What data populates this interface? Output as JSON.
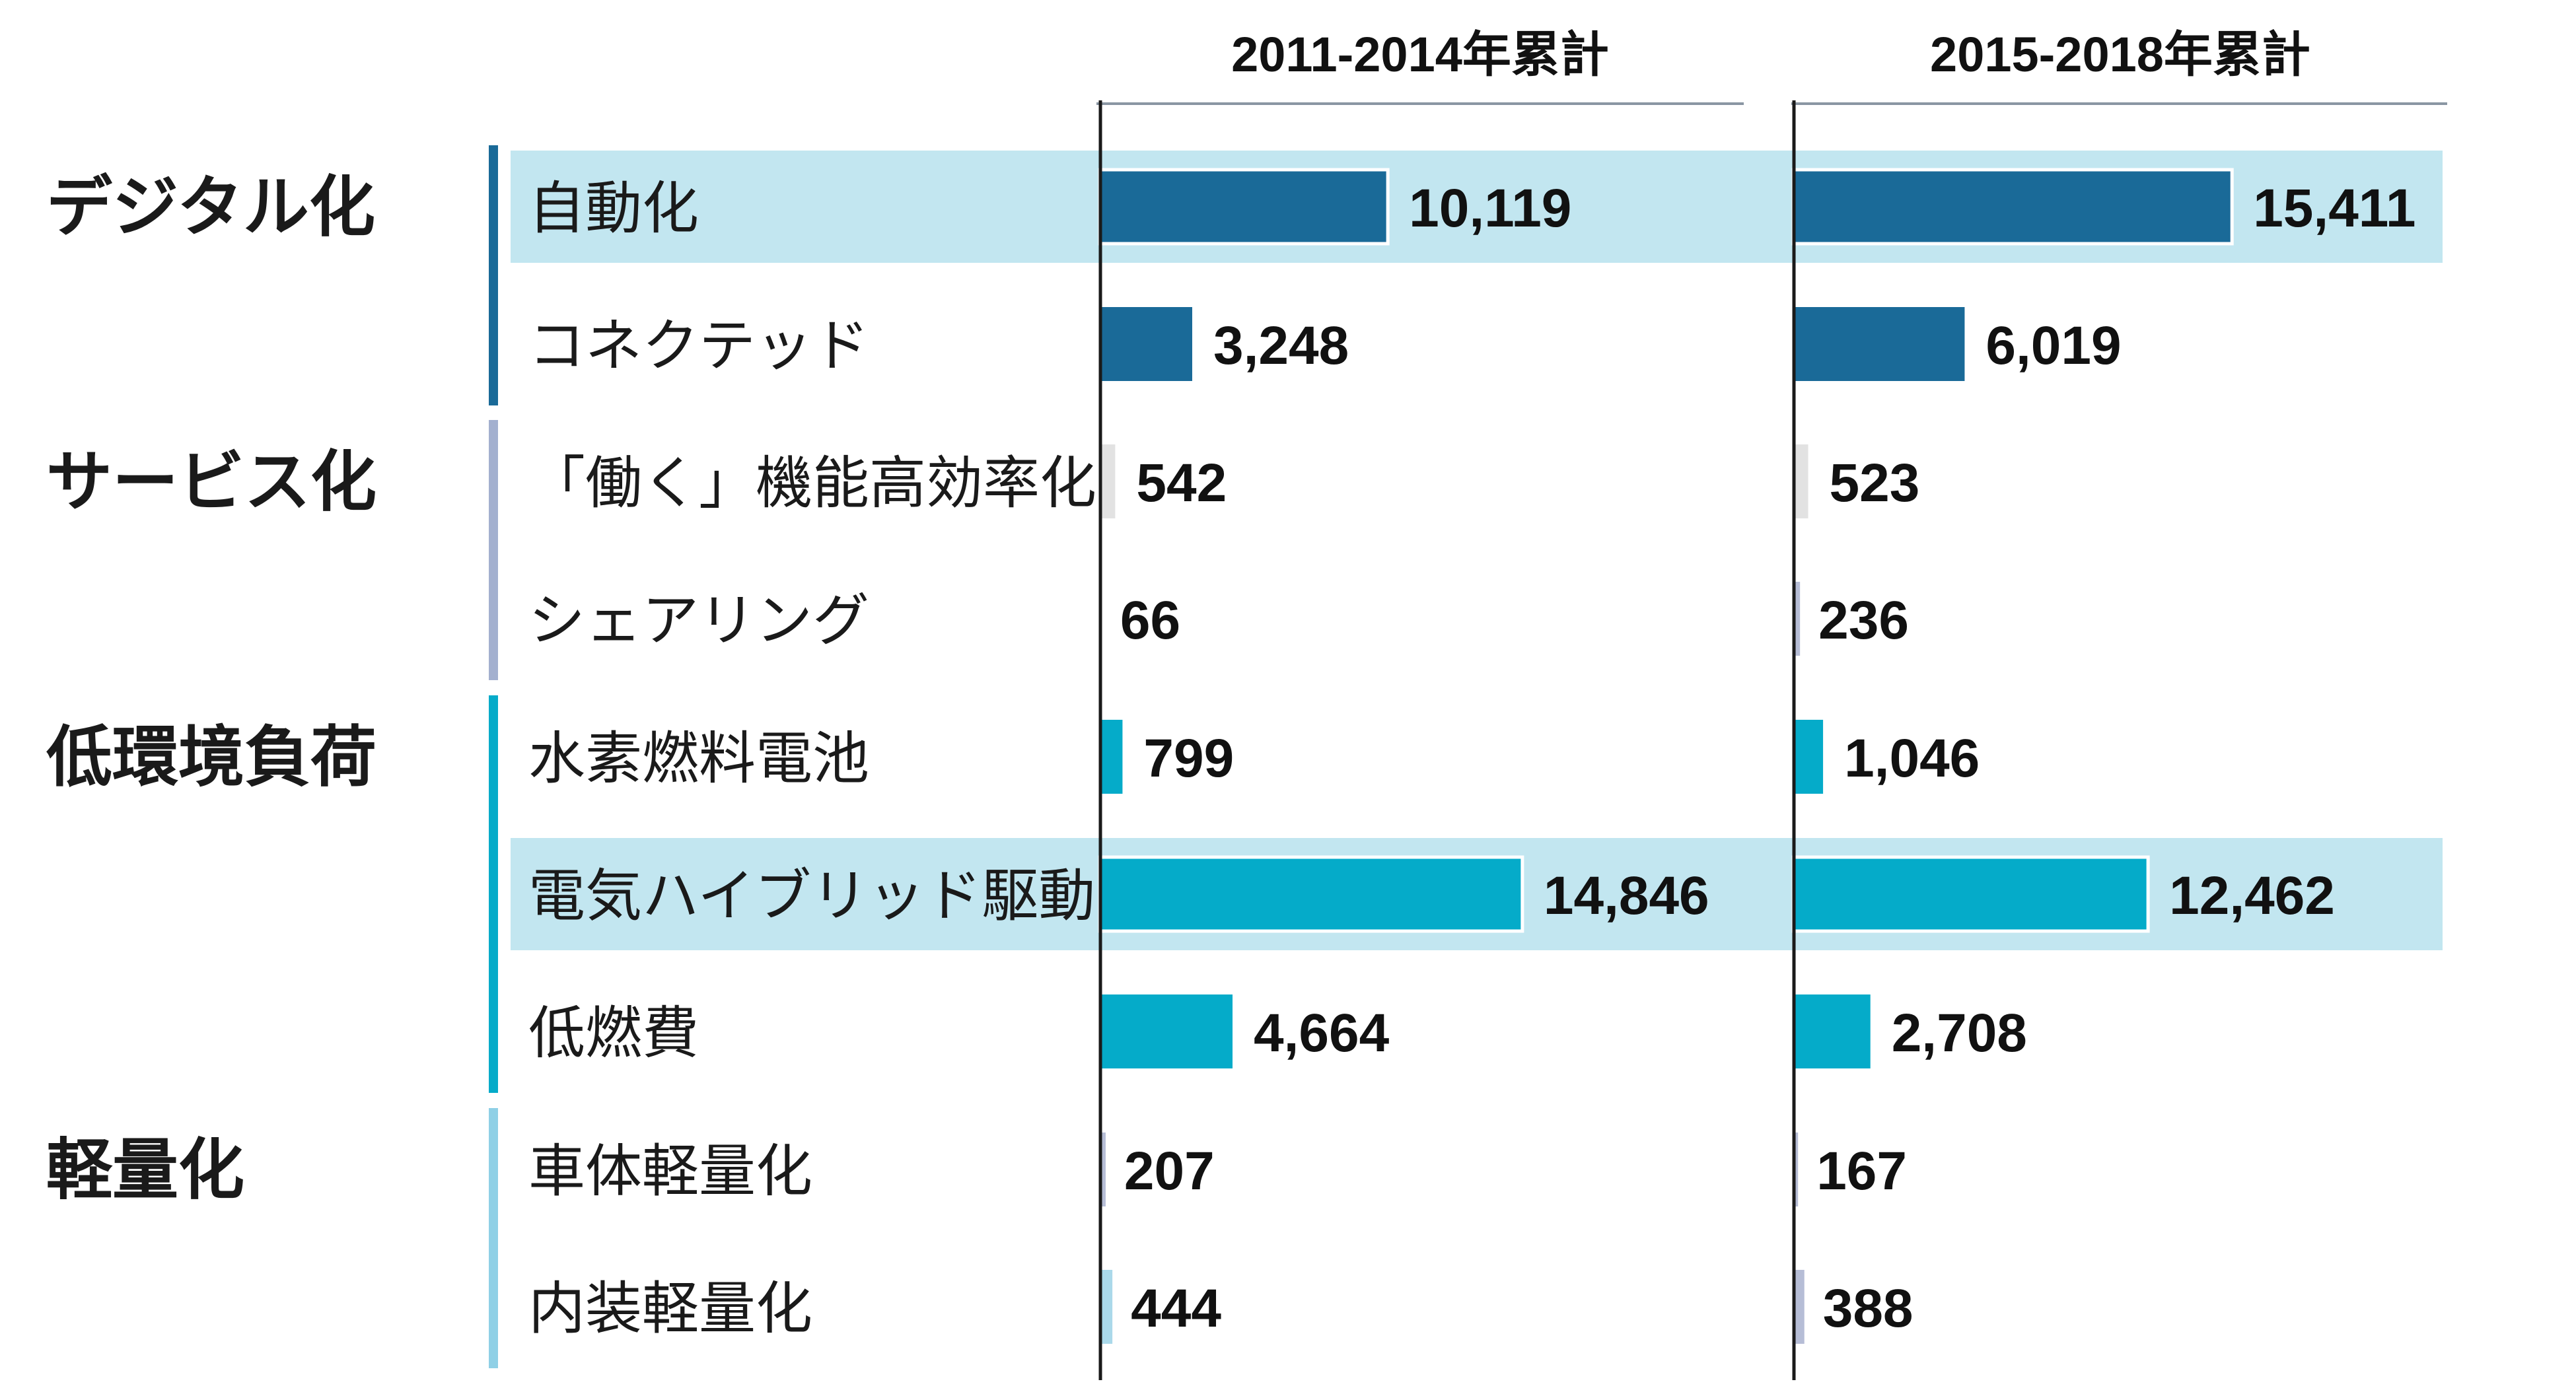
{
  "chart_data": {
    "type": "bar",
    "orientation": "horizontal",
    "panel_titles": [
      "2011-2014年累計",
      "2015-2018年累計"
    ],
    "groups": [
      {
        "name": "デジタル化",
        "color": "#1a6a98",
        "items": [
          0,
          1
        ]
      },
      {
        "name": "サービス化",
        "color": "#a3b0cf",
        "items": [
          2,
          3
        ]
      },
      {
        "name": "低環境負荷",
        "color": "#05abc9",
        "items": [
          4,
          5,
          6
        ]
      },
      {
        "name": "軽量化",
        "color": "#8fd0e6",
        "items": [
          7,
          8
        ]
      }
    ],
    "categories": [
      "自動化",
      "コネクテッド",
      "「働く」機能高効率化",
      "シェアリング",
      "水素燃料電池",
      "電気ハイブリッド駆動",
      "低燃費",
      "車体軽量化",
      "内装軽量化"
    ],
    "highlighted": [
      "自動化",
      "電気ハイブリッド駆動"
    ],
    "series": [
      {
        "name": "2011-2014年累計",
        "values": [
          10119,
          3248,
          542,
          66,
          799,
          14846,
          4664,
          207,
          444
        ]
      },
      {
        "name": "2015-2018年累計",
        "values": [
          15411,
          6019,
          523,
          236,
          1046,
          12462,
          2708,
          167,
          388
        ]
      }
    ],
    "value_labels": [
      [
        "10,119",
        "3,248",
        "542",
        "66",
        "799",
        "14,846",
        "4,664",
        "207",
        "444"
      ],
      [
        "15,411",
        "6,019",
        "523",
        "236",
        "1,046",
        "12,462",
        "2,708",
        "167",
        "388"
      ]
    ],
    "xlim": [
      0,
      24000
    ],
    "colors": {
      "highlight_band": "#c2e6f0",
      "axis": "#1a1a1a",
      "header_rule": "#8a96a3",
      "digital": "#1a6a98",
      "service_bar": "#e2e2e2",
      "service_bar_small": "#b6bdd6",
      "environment": "#05abc9",
      "lightweight_bar": "#aad9ea",
      "lightweight_bar_small": "#b6bdd6"
    }
  }
}
